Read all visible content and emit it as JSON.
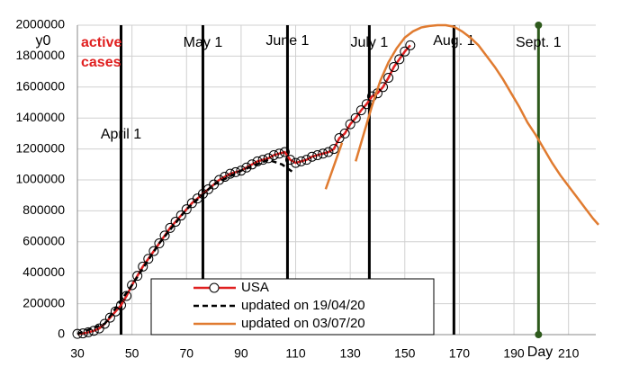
{
  "chart_data": {
    "type": "line",
    "y_label": "y0",
    "x_label": "Day",
    "annotation": "active cases",
    "xlim": [
      30,
      220
    ],
    "xticks": [
      30,
      50,
      70,
      90,
      110,
      130,
      150,
      170,
      190,
      210
    ],
    "ylim": [
      0,
      2000000
    ],
    "yticks": [
      0,
      200000,
      400000,
      600000,
      800000,
      1000000,
      1200000,
      1400000,
      1600000,
      1800000,
      2000000
    ],
    "grid": true,
    "events": [
      {
        "x": 46,
        "label": "April 1",
        "color": "#000000"
      },
      {
        "x": 76,
        "label": "May 1",
        "color": "#000000"
      },
      {
        "x": 107,
        "label": "June 1",
        "color": "#000000"
      },
      {
        "x": 137,
        "label": "July 1",
        "color": "#000000"
      },
      {
        "x": 168,
        "label": "Aug. 1",
        "color": "#000000"
      },
      {
        "x": 199,
        "label": "Sept. 1",
        "color": "#2e5a1c"
      }
    ],
    "series": [
      {
        "name": "USA",
        "color": "#e02020",
        "marker": "circle",
        "x": [
          30,
          32,
          34,
          36,
          38,
          40,
          42,
          44,
          46,
          48,
          50,
          52,
          54,
          56,
          58,
          60,
          62,
          64,
          66,
          68,
          70,
          72,
          74,
          76,
          78,
          80,
          82,
          84,
          86,
          88,
          90,
          92,
          94,
          96,
          98,
          100,
          102,
          104,
          106,
          108,
          110,
          112,
          114,
          116,
          118,
          120,
          122,
          124,
          126,
          128,
          130,
          132,
          134,
          136,
          138,
          140,
          142,
          144,
          146,
          148,
          150,
          152
        ],
        "values": [
          5000,
          8000,
          15000,
          25000,
          40000,
          70000,
          110000,
          150000,
          190000,
          250000,
          320000,
          380000,
          440000,
          490000,
          540000,
          590000,
          640000,
          690000,
          730000,
          770000,
          810000,
          850000,
          880000,
          910000,
          940000,
          970000,
          1000000,
          1020000,
          1040000,
          1050000,
          1060000,
          1080000,
          1100000,
          1120000,
          1130000,
          1140000,
          1160000,
          1170000,
          1180000,
          1130000,
          1110000,
          1120000,
          1130000,
          1150000,
          1160000,
          1170000,
          1180000,
          1200000,
          1270000,
          1300000,
          1360000,
          1400000,
          1450000,
          1490000,
          1540000,
          1560000,
          1600000,
          1660000,
          1730000,
          1780000,
          1830000,
          1870000
        ]
      },
      {
        "name": "updated on 19/04/20",
        "color": "#000000",
        "dash": true,
        "x": [
          30,
          40,
          50,
          60,
          70,
          80,
          90,
          100,
          105,
          109
        ],
        "values": [
          5000,
          70000,
          320000,
          590000,
          810000,
          970000,
          1060000,
          1130000,
          1100000,
          1050000
        ]
      },
      {
        "name": "updated on 03/07/20",
        "color": "#e07b30",
        "x": [
          121,
          123,
          125,
          127,
          129,
          132,
          135,
          138,
          141,
          144,
          147,
          150,
          153,
          156,
          159,
          162,
          165,
          168,
          171,
          174,
          177,
          180,
          183,
          186,
          189,
          192,
          195,
          198,
          201,
          204,
          207,
          210,
          213,
          216,
          219,
          221
        ],
        "values": [
          940000,
          1040000,
          1140000,
          1240000,
          null,
          1120000,
          1300000,
          1480000,
          1640000,
          1760000,
          1850000,
          1920000,
          1960000,
          1985000,
          1995000,
          2000000,
          2000000,
          1990000,
          1960000,
          1920000,
          1870000,
          1800000,
          1730000,
          1650000,
          1560000,
          1470000,
          1370000,
          1290000,
          1200000,
          1110000,
          1030000,
          960000,
          890000,
          820000,
          750000,
          710000
        ]
      }
    ]
  }
}
